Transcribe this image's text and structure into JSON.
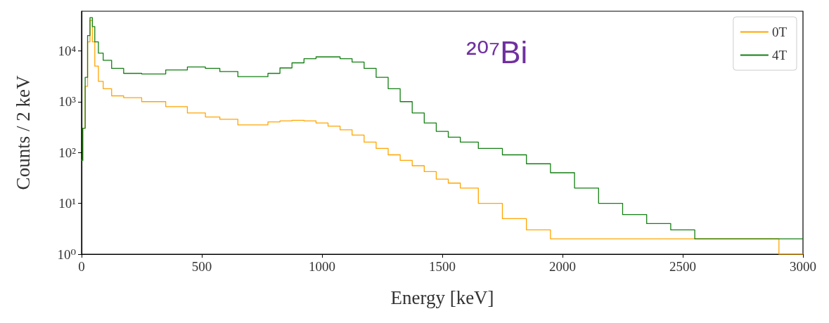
{
  "chart_data": {
    "type": "step",
    "xlabel": "Energy [keV]",
    "ylabel": "Counts / 2 keV",
    "annotations": [
      "²⁰⁷Bi"
    ],
    "log": "y",
    "legend": "top right",
    "grid": false,
    "xlim": [
      0,
      3000
    ],
    "xticks": [
      0,
      500,
      1000,
      1500,
      2000,
      2500,
      3000
    ],
    "ylim": [
      1,
      60000
    ],
    "yticks": [
      {
        "value": 1,
        "label": "10⁰"
      },
      {
        "value": 10,
        "label": "10¹"
      },
      {
        "value": 100,
        "label": "10²"
      },
      {
        "value": 1000,
        "label": "10³"
      },
      {
        "value": 10000,
        "label": "10⁴"
      }
    ],
    "x": [
      0,
      10,
      20,
      30,
      40,
      50,
      60,
      80,
      100,
      150,
      200,
      300,
      400,
      480,
      550,
      600,
      700,
      750,
      800,
      850,
      900,
      950,
      1000,
      1050,
      1100,
      1150,
      1200,
      1250,
      1300,
      1350,
      1400,
      1450,
      1500,
      1550,
      1600,
      1700,
      1800,
      1900,
      2000,
      2100,
      2200,
      2300,
      2400,
      2500,
      2600,
      2800,
      3000
    ],
    "series": [
      {
        "name": "0T",
        "color": "#ffa500",
        "values": [
          70,
          300,
          2000,
          15000,
          40000,
          15000,
          5000,
          2500,
          1800,
          1300,
          1200,
          1000,
          800,
          600,
          500,
          450,
          350,
          350,
          400,
          420,
          430,
          420,
          380,
          330,
          280,
          220,
          160,
          120,
          90,
          70,
          55,
          42,
          30,
          25,
          20,
          10,
          5,
          3,
          2,
          2,
          2,
          2,
          2,
          2,
          2,
          2,
          1
        ]
      },
      {
        "name": "4T",
        "color": "#137f13",
        "values": [
          70,
          300,
          3000,
          20000,
          45000,
          30000,
          15000,
          9000,
          6500,
          4500,
          3600,
          3500,
          4200,
          4800,
          4500,
          3900,
          3100,
          3100,
          3600,
          4600,
          5800,
          7000,
          7600,
          7600,
          7000,
          6000,
          4500,
          3000,
          1800,
          1000,
          600,
          380,
          260,
          200,
          160,
          120,
          90,
          60,
          40,
          20,
          10,
          6,
          4,
          3,
          2,
          2,
          2
        ]
      }
    ]
  }
}
